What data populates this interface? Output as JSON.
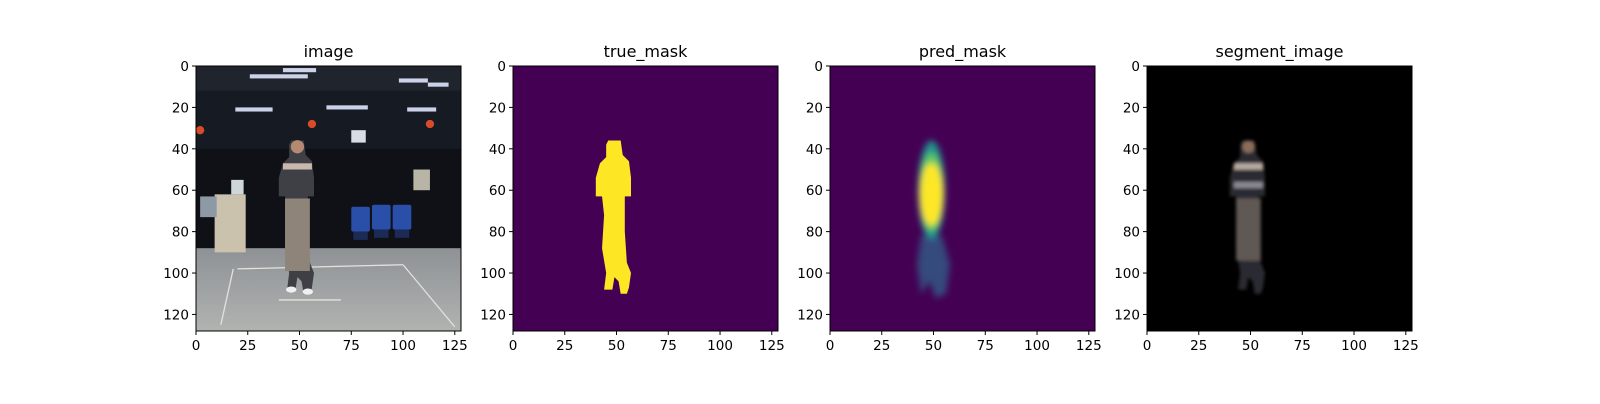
{
  "figure": {
    "background": "#ffffff"
  },
  "chart_data": [
    {
      "type": "heatmap",
      "title": "image",
      "render": "photo",
      "xlim": [
        0,
        128
      ],
      "ylim": [
        128,
        0
      ],
      "xticks": [
        0,
        25,
        50,
        75,
        100,
        125
      ],
      "yticks": [
        0,
        20,
        40,
        60,
        80,
        100,
        120
      ],
      "grid": false
    },
    {
      "type": "heatmap",
      "title": "true_mask",
      "render": "true",
      "xlim": [
        0,
        128
      ],
      "ylim": [
        128,
        0
      ],
      "xticks": [
        0,
        25,
        50,
        75,
        100,
        125
      ],
      "yticks": [
        0,
        20,
        40,
        60,
        80,
        100,
        120
      ],
      "grid": false,
      "colors": {
        "background": "#440154",
        "foreground": "#fde725"
      }
    },
    {
      "type": "heatmap",
      "title": "pred_mask",
      "render": "pred",
      "xlim": [
        0,
        128
      ],
      "ylim": [
        128,
        0
      ],
      "xticks": [
        0,
        25,
        50,
        75,
        100,
        125
      ],
      "yticks": [
        0,
        20,
        40,
        60,
        80,
        100,
        120
      ],
      "grid": false,
      "colors": {
        "background": "#440154",
        "foreground": "#fde725"
      }
    },
    {
      "type": "heatmap",
      "title": "segment_image",
      "render": "segment",
      "xlim": [
        0,
        128
      ],
      "ylim": [
        128,
        0
      ],
      "xticks": [
        0,
        25,
        50,
        75,
        100,
        125
      ],
      "yticks": [
        0,
        20,
        40,
        60,
        80,
        100,
        120
      ],
      "grid": false,
      "colors": {
        "background": "#000000"
      }
    }
  ]
}
